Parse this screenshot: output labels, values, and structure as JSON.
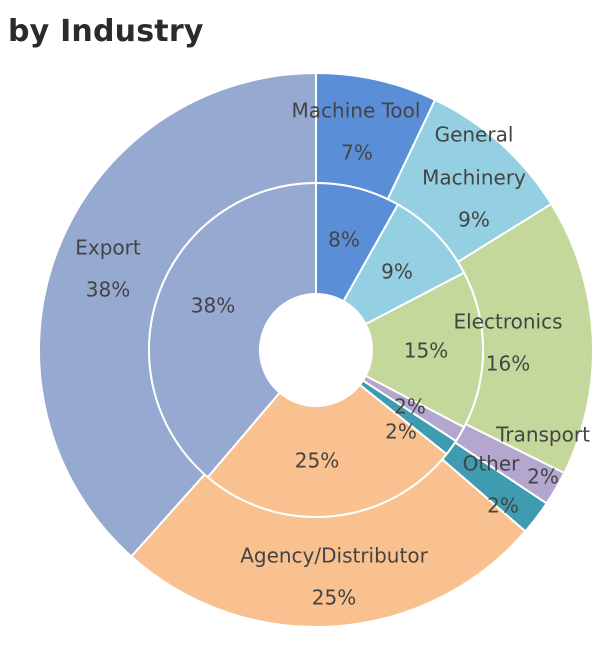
{
  "title": "by Industry",
  "chart_data": {
    "type": "doughnut",
    "title": "by Industry",
    "unit": "%",
    "series": [
      {
        "name": "outer",
        "slices": [
          {
            "key": "machine-tool",
            "label": "Machine Tool",
            "label_lines": [
              "Machine Tool"
            ],
            "value": 7,
            "value_text": "7%",
            "color": "#5a8fd8"
          },
          {
            "key": "general-machinery",
            "label": "General Machinery",
            "label_lines": [
              "General",
              "Machinery"
            ],
            "value": 9,
            "value_text": "9%",
            "color": "#94cfe2"
          },
          {
            "key": "electronics",
            "label": "Electronics",
            "label_lines": [
              "Electronics"
            ],
            "value": 16,
            "value_text": "16%",
            "color": "#c4d89c"
          },
          {
            "key": "transport",
            "label": "Transport",
            "label_lines": [
              "Transport"
            ],
            "value": 2,
            "value_text": "2%",
            "color": "#b3a6cf"
          },
          {
            "key": "other",
            "label": "Other",
            "label_lines": [
              "Other"
            ],
            "value": 2,
            "value_text": "2%",
            "color": "#3e9bb0"
          },
          {
            "key": "agency-distributor",
            "label": "Agency/Distributor",
            "label_lines": [
              "Agency/Distributor"
            ],
            "value": 25,
            "value_text": "25%",
            "color": "#f8c18f"
          },
          {
            "key": "export",
            "label": "Export",
            "label_lines": [
              "Export"
            ],
            "value": 38,
            "value_text": "38%",
            "color": "#96a9d0"
          }
        ]
      },
      {
        "name": "inner",
        "slices": [
          {
            "key": "machine-tool",
            "value": 8,
            "value_text": "8%",
            "color": "#5a8fd8"
          },
          {
            "key": "general-machinery",
            "value": 9,
            "value_text": "9%",
            "color": "#94cfe2"
          },
          {
            "key": "electronics",
            "value": 15,
            "value_text": "15%",
            "color": "#c4d89c"
          },
          {
            "key": "transport",
            "value": 1.5,
            "value_text": "2%",
            "color": "#b3a6cf"
          },
          {
            "key": "other",
            "value": 1.5,
            "value_text": "2%",
            "color": "#3e9bb0"
          },
          {
            "key": "agency-distributor",
            "value": 25,
            "value_text": "25%",
            "color": "#f8c18f"
          },
          {
            "key": "export",
            "value": 38,
            "value_text": "38%",
            "color": "#96a9d0"
          }
        ]
      }
    ]
  }
}
